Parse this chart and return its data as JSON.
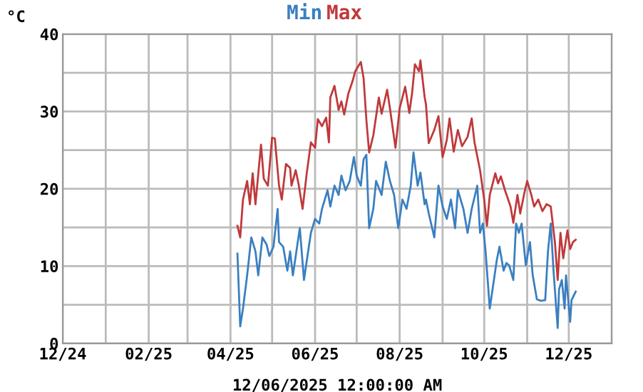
{
  "chart_data": {
    "type": "line",
    "ylabel": "°C",
    "xlabel": "12/06/2025 12:00:00 AM",
    "legend": "top",
    "grid": true,
    "marker": "none",
    "line_style": "solid",
    "xlim": [
      "2024-12-01",
      "2026-01-01"
    ],
    "xticks": [
      {
        "value": "2024-12-01",
        "label": "12/24"
      },
      {
        "value": "2025-01-01",
        "label": null
      },
      {
        "value": "2025-02-01",
        "label": "02/25"
      },
      {
        "value": "2025-03-01",
        "label": null
      },
      {
        "value": "2025-04-01",
        "label": "04/25"
      },
      {
        "value": "2025-05-01",
        "label": null
      },
      {
        "value": "2025-06-01",
        "label": "06/25"
      },
      {
        "value": "2025-07-01",
        "label": null
      },
      {
        "value": "2025-08-01",
        "label": "08/25"
      },
      {
        "value": "2025-09-01",
        "label": null
      },
      {
        "value": "2025-10-01",
        "label": "10/25"
      },
      {
        "value": "2025-11-01",
        "label": null
      },
      {
        "value": "2025-12-01",
        "label": "12/25"
      },
      {
        "value": "2026-01-01",
        "label": null
      }
    ],
    "ylim": [
      0,
      40
    ],
    "yticks": [
      0,
      {
        "value": 5,
        "label": null
      },
      10,
      {
        "value": 15,
        "label": null
      },
      20,
      {
        "value": 25,
        "label": null
      },
      30,
      {
        "value": 35,
        "label": null
      },
      40
    ],
    "series": [
      {
        "name": "Min",
        "color": "#3a7fc1",
        "x": [
          "2025-04-06",
          "2025-04-08",
          "2025-04-10",
          "2025-04-13",
          "2025-04-16",
          "2025-04-19",
          "2025-04-21",
          "2025-04-24",
          "2025-04-27",
          "2025-04-29",
          "2025-05-02",
          "2025-05-05",
          "2025-05-06",
          "2025-05-09",
          "2025-05-12",
          "2025-05-14",
          "2025-05-16",
          "2025-05-19",
          "2025-05-21",
          "2025-05-24",
          "2025-05-27",
          "2025-05-29",
          "2025-06-01",
          "2025-06-04",
          "2025-06-06",
          "2025-06-10",
          "2025-06-12",
          "2025-06-15",
          "2025-06-18",
          "2025-06-20",
          "2025-06-23",
          "2025-06-26",
          "2025-06-29",
          "2025-07-01",
          "2025-07-04",
          "2025-07-06",
          "2025-07-08",
          "2025-07-10",
          "2025-07-13",
          "2025-07-15",
          "2025-07-19",
          "2025-07-22",
          "2025-07-25",
          "2025-07-28",
          "2025-07-31",
          "2025-08-03",
          "2025-08-06",
          "2025-08-09",
          "2025-08-11",
          "2025-08-14",
          "2025-08-16",
          "2025-08-19",
          "2025-08-20",
          "2025-08-22",
          "2025-08-26",
          "2025-08-29",
          "2025-09-01",
          "2025-09-04",
          "2025-09-07",
          "2025-09-10",
          "2025-09-12",
          "2025-09-16",
          "2025-09-19",
          "2025-09-22",
          "2025-09-26",
          "2025-09-28",
          "2025-09-30",
          "2025-10-02",
          "2025-10-05",
          "2025-10-08",
          "2025-10-10",
          "2025-10-12",
          "2025-10-15",
          "2025-10-17",
          "2025-10-19",
          "2025-10-22",
          "2025-10-24",
          "2025-10-26",
          "2025-10-28",
          "2025-10-31",
          "2025-11-03",
          "2025-11-05",
          "2025-11-08",
          "2025-11-11",
          "2025-11-14",
          "2025-11-16",
          "2025-11-18",
          "2025-11-20",
          "2025-11-23",
          "2025-11-24",
          "2025-11-26",
          "2025-11-28",
          "2025-11-29",
          "2025-12-02",
          "2025-12-03",
          "2025-12-06"
        ],
        "values": [
          11.6,
          2.2,
          4.5,
          8.8,
          13.7,
          11.9,
          8.8,
          13.7,
          12.8,
          11.3,
          12.5,
          17.4,
          13.1,
          12.5,
          9.4,
          11.9,
          8.8,
          12.5,
          14.9,
          8.2,
          11.9,
          14.3,
          16.1,
          15.5,
          17.4,
          19.8,
          17.7,
          20.4,
          19.2,
          21.7,
          19.8,
          21.0,
          24.1,
          21.7,
          20.4,
          23.8,
          24.4,
          14.9,
          17.4,
          21.0,
          19.2,
          23.5,
          21.0,
          19.2,
          14.9,
          18.6,
          17.4,
          20.4,
          24.7,
          20.4,
          22.1,
          18.0,
          18.6,
          16.8,
          13.7,
          20.4,
          17.7,
          16.1,
          18.6,
          14.9,
          19.8,
          17.4,
          14.3,
          17.4,
          20.4,
          14.3,
          15.5,
          11.9,
          4.5,
          8.2,
          10.7,
          12.5,
          9.4,
          10.4,
          10.1,
          8.2,
          15.5,
          14.3,
          15.5,
          10.1,
          13.1,
          8.8,
          5.7,
          5.5,
          5.6,
          11.9,
          15.5,
          9.4,
          2.0,
          7.0,
          8.2,
          4.5,
          8.8,
          2.8,
          5.6,
          6.7
        ]
      },
      {
        "name": "Max",
        "color": "#c0393b",
        "x": [
          "2025-04-06",
          "2025-04-08",
          "2025-04-10",
          "2025-04-13",
          "2025-04-15",
          "2025-04-17",
          "2025-04-19",
          "2025-04-23",
          "2025-04-25",
          "2025-04-28",
          "2025-05-01",
          "2025-05-03",
          "2025-05-06",
          "2025-05-08",
          "2025-05-11",
          "2025-05-14",
          "2025-05-15",
          "2025-05-18",
          "2025-05-20",
          "2025-05-23",
          "2025-05-26",
          "2025-05-29",
          "2025-06-01",
          "2025-06-03",
          "2025-06-06",
          "2025-06-09",
          "2025-06-11",
          "2025-06-12",
          "2025-06-15",
          "2025-06-18",
          "2025-06-20",
          "2025-06-22",
          "2025-06-25",
          "2025-06-28",
          "2025-06-30",
          "2025-07-04",
          "2025-07-06",
          "2025-07-08",
          "2025-07-10",
          "2025-07-13",
          "2025-07-17",
          "2025-07-19",
          "2025-07-23",
          "2025-07-25",
          "2025-07-29",
          "2025-08-01",
          "2025-08-05",
          "2025-08-08",
          "2025-08-10",
          "2025-08-12",
          "2025-08-15",
          "2025-08-16",
          "2025-08-19",
          "2025-08-20",
          "2025-08-22",
          "2025-08-26",
          "2025-08-29",
          "2025-09-01",
          "2025-09-04",
          "2025-09-06",
          "2025-09-09",
          "2025-09-12",
          "2025-09-15",
          "2025-09-19",
          "2025-09-22",
          "2025-09-24",
          "2025-09-28",
          "2025-10-01",
          "2025-10-03",
          "2025-10-05",
          "2025-10-09",
          "2025-10-11",
          "2025-10-13",
          "2025-10-16",
          "2025-10-20",
          "2025-10-22",
          "2025-10-25",
          "2025-10-27",
          "2025-10-30",
          "2025-11-01",
          "2025-11-04",
          "2025-11-06",
          "2025-11-09",
          "2025-11-12",
          "2025-11-15",
          "2025-11-18",
          "2025-11-21",
          "2025-11-23",
          "2025-11-25",
          "2025-11-27",
          "2025-11-30",
          "2025-12-02",
          "2025-12-04",
          "2025-12-06"
        ],
        "values": [
          15.2,
          13.7,
          18.6,
          21.0,
          18.0,
          22.0,
          18.0,
          25.7,
          21.3,
          20.4,
          26.6,
          26.5,
          20.4,
          18.6,
          23.2,
          22.7,
          20.4,
          22.4,
          20.7,
          17.4,
          22.0,
          26.0,
          25.3,
          29.0,
          28.1,
          29.2,
          26.0,
          31.8,
          33.3,
          30.2,
          31.3,
          29.6,
          32.3,
          33.9,
          35.2,
          36.4,
          34.3,
          28.9,
          24.7,
          26.9,
          31.8,
          29.7,
          32.8,
          30.4,
          25.3,
          30.4,
          33.2,
          29.8,
          32.4,
          36.1,
          35.2,
          36.6,
          31.9,
          30.9,
          25.9,
          27.6,
          29.4,
          24.1,
          26.3,
          29.1,
          24.8,
          27.6,
          25.5,
          26.7,
          29.1,
          26.0,
          22.4,
          18.6,
          15.2,
          19.2,
          22.0,
          20.7,
          21.6,
          19.8,
          17.7,
          15.6,
          19.2,
          16.8,
          19.5,
          21.0,
          19.2,
          17.7,
          18.6,
          17.1,
          18.0,
          17.7,
          13.1,
          8.2,
          14.3,
          11.0,
          14.6,
          12.2,
          13.1,
          13.4
        ]
      }
    ]
  }
}
